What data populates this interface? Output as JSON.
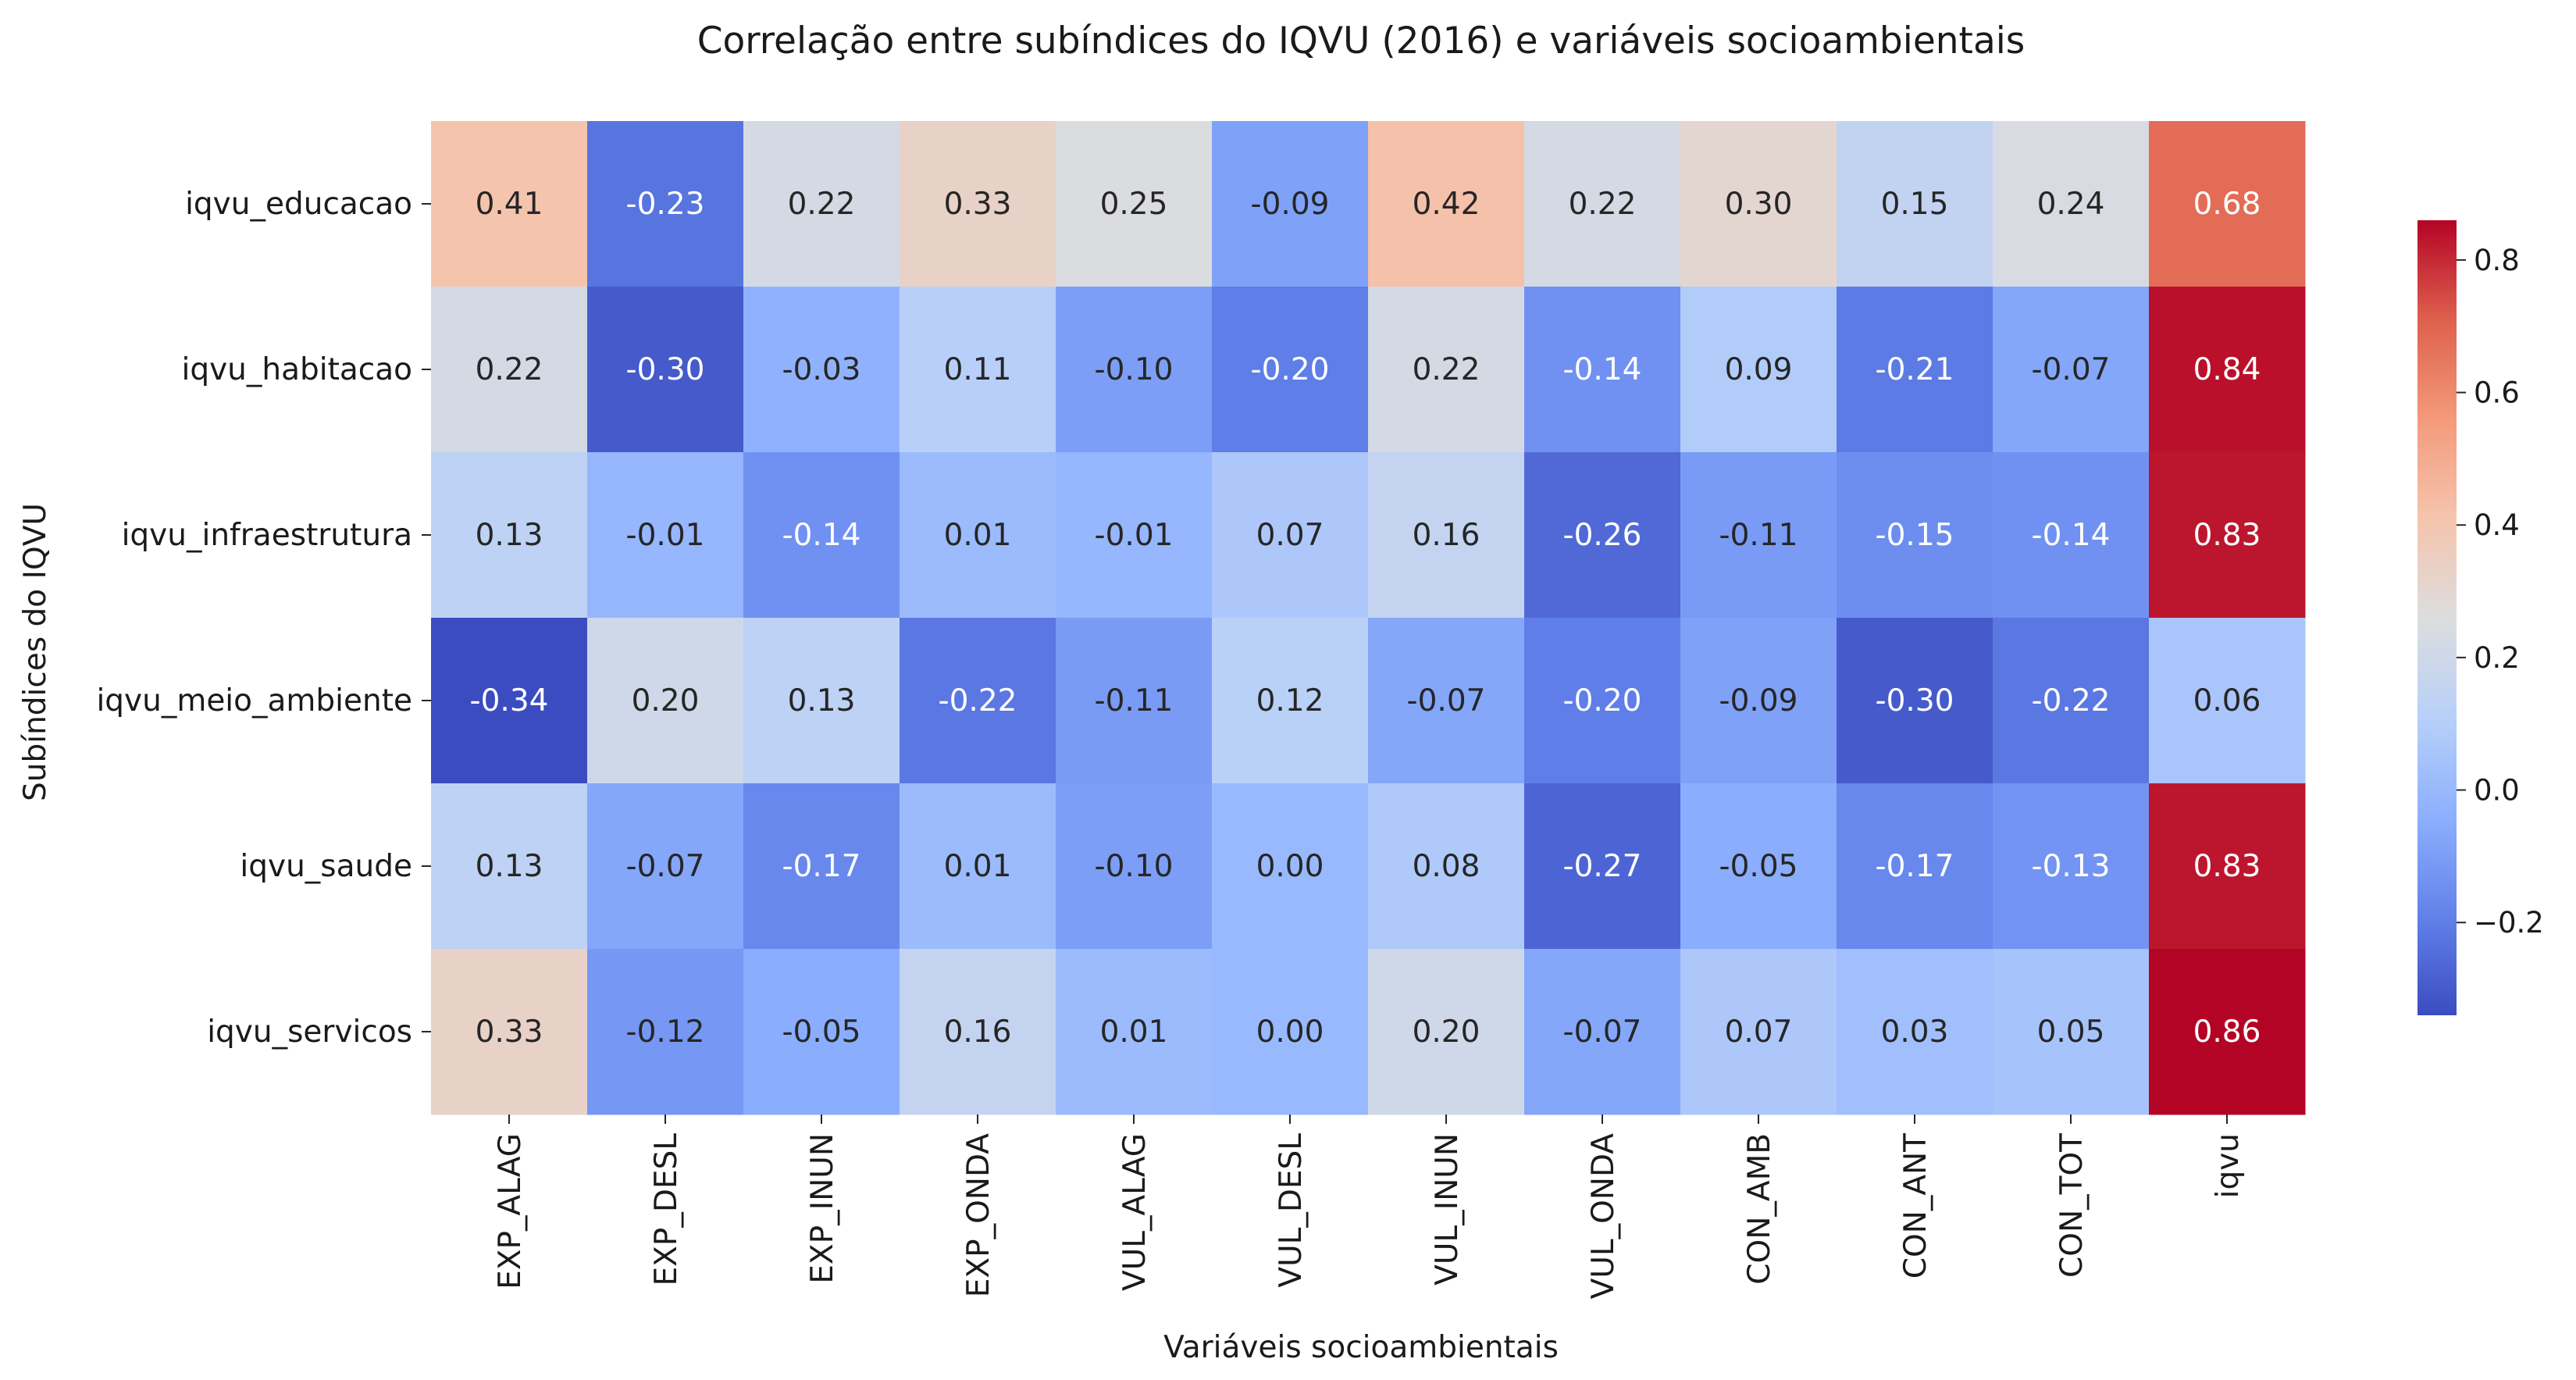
{
  "chart_data": {
    "type": "heatmap",
    "title": "Correlação entre subíndices do IQVU (2016) e variáveis socioambientais",
    "xlabel": "Variáveis socioambientais",
    "ylabel": "Subíndices do IQVU",
    "x_categories": [
      "EXP_ALAG",
      "EXP_DESL",
      "EXP_INUN",
      "EXP_ONDA",
      "VUL_ALAG",
      "VUL_DESL",
      "VUL_INUN",
      "VUL_ONDA",
      "CON_AMB",
      "CON_ANT",
      "CON_TOT",
      "iqvu"
    ],
    "y_categories": [
      "iqvu_educacao",
      "iqvu_habitacao",
      "iqvu_infraestrutura",
      "iqvu_meio_ambiente",
      "iqvu_saude",
      "iqvu_servicos"
    ],
    "values": [
      [
        0.41,
        -0.23,
        0.22,
        0.33,
        0.25,
        -0.09,
        0.42,
        0.22,
        0.3,
        0.15,
        0.24,
        0.68
      ],
      [
        0.22,
        -0.3,
        -0.03,
        0.11,
        -0.1,
        -0.2,
        0.22,
        -0.14,
        0.09,
        -0.21,
        -0.07,
        0.84
      ],
      [
        0.13,
        -0.01,
        -0.14,
        0.01,
        -0.01,
        0.07,
        0.16,
        -0.26,
        -0.11,
        -0.15,
        -0.14,
        0.83
      ],
      [
        -0.34,
        0.2,
        0.13,
        -0.22,
        -0.11,
        0.12,
        -0.07,
        -0.2,
        -0.09,
        -0.3,
        -0.22,
        0.06
      ],
      [
        0.13,
        -0.07,
        -0.17,
        0.01,
        -0.1,
        0.0,
        0.08,
        -0.27,
        -0.05,
        -0.17,
        -0.13,
        0.83
      ],
      [
        0.33,
        -0.12,
        -0.05,
        0.16,
        0.01,
        0.0,
        0.2,
        -0.07,
        0.07,
        0.03,
        0.05,
        0.86
      ]
    ],
    "value_format": "2 decimals",
    "colormap": "coolwarm",
    "colorbar": {
      "range": [
        -0.34,
        0.86
      ],
      "ticks": [
        -0.2,
        0.0,
        0.2,
        0.4,
        0.6,
        0.8
      ],
      "tick_labels": [
        "−0.2",
        "0.0",
        "0.2",
        "0.4",
        "0.6",
        "0.8"
      ],
      "placement": "right"
    },
    "colors": {
      "cold": "#3b4cc0",
      "neutral": "#dddddd",
      "hot": "#b40426"
    }
  }
}
